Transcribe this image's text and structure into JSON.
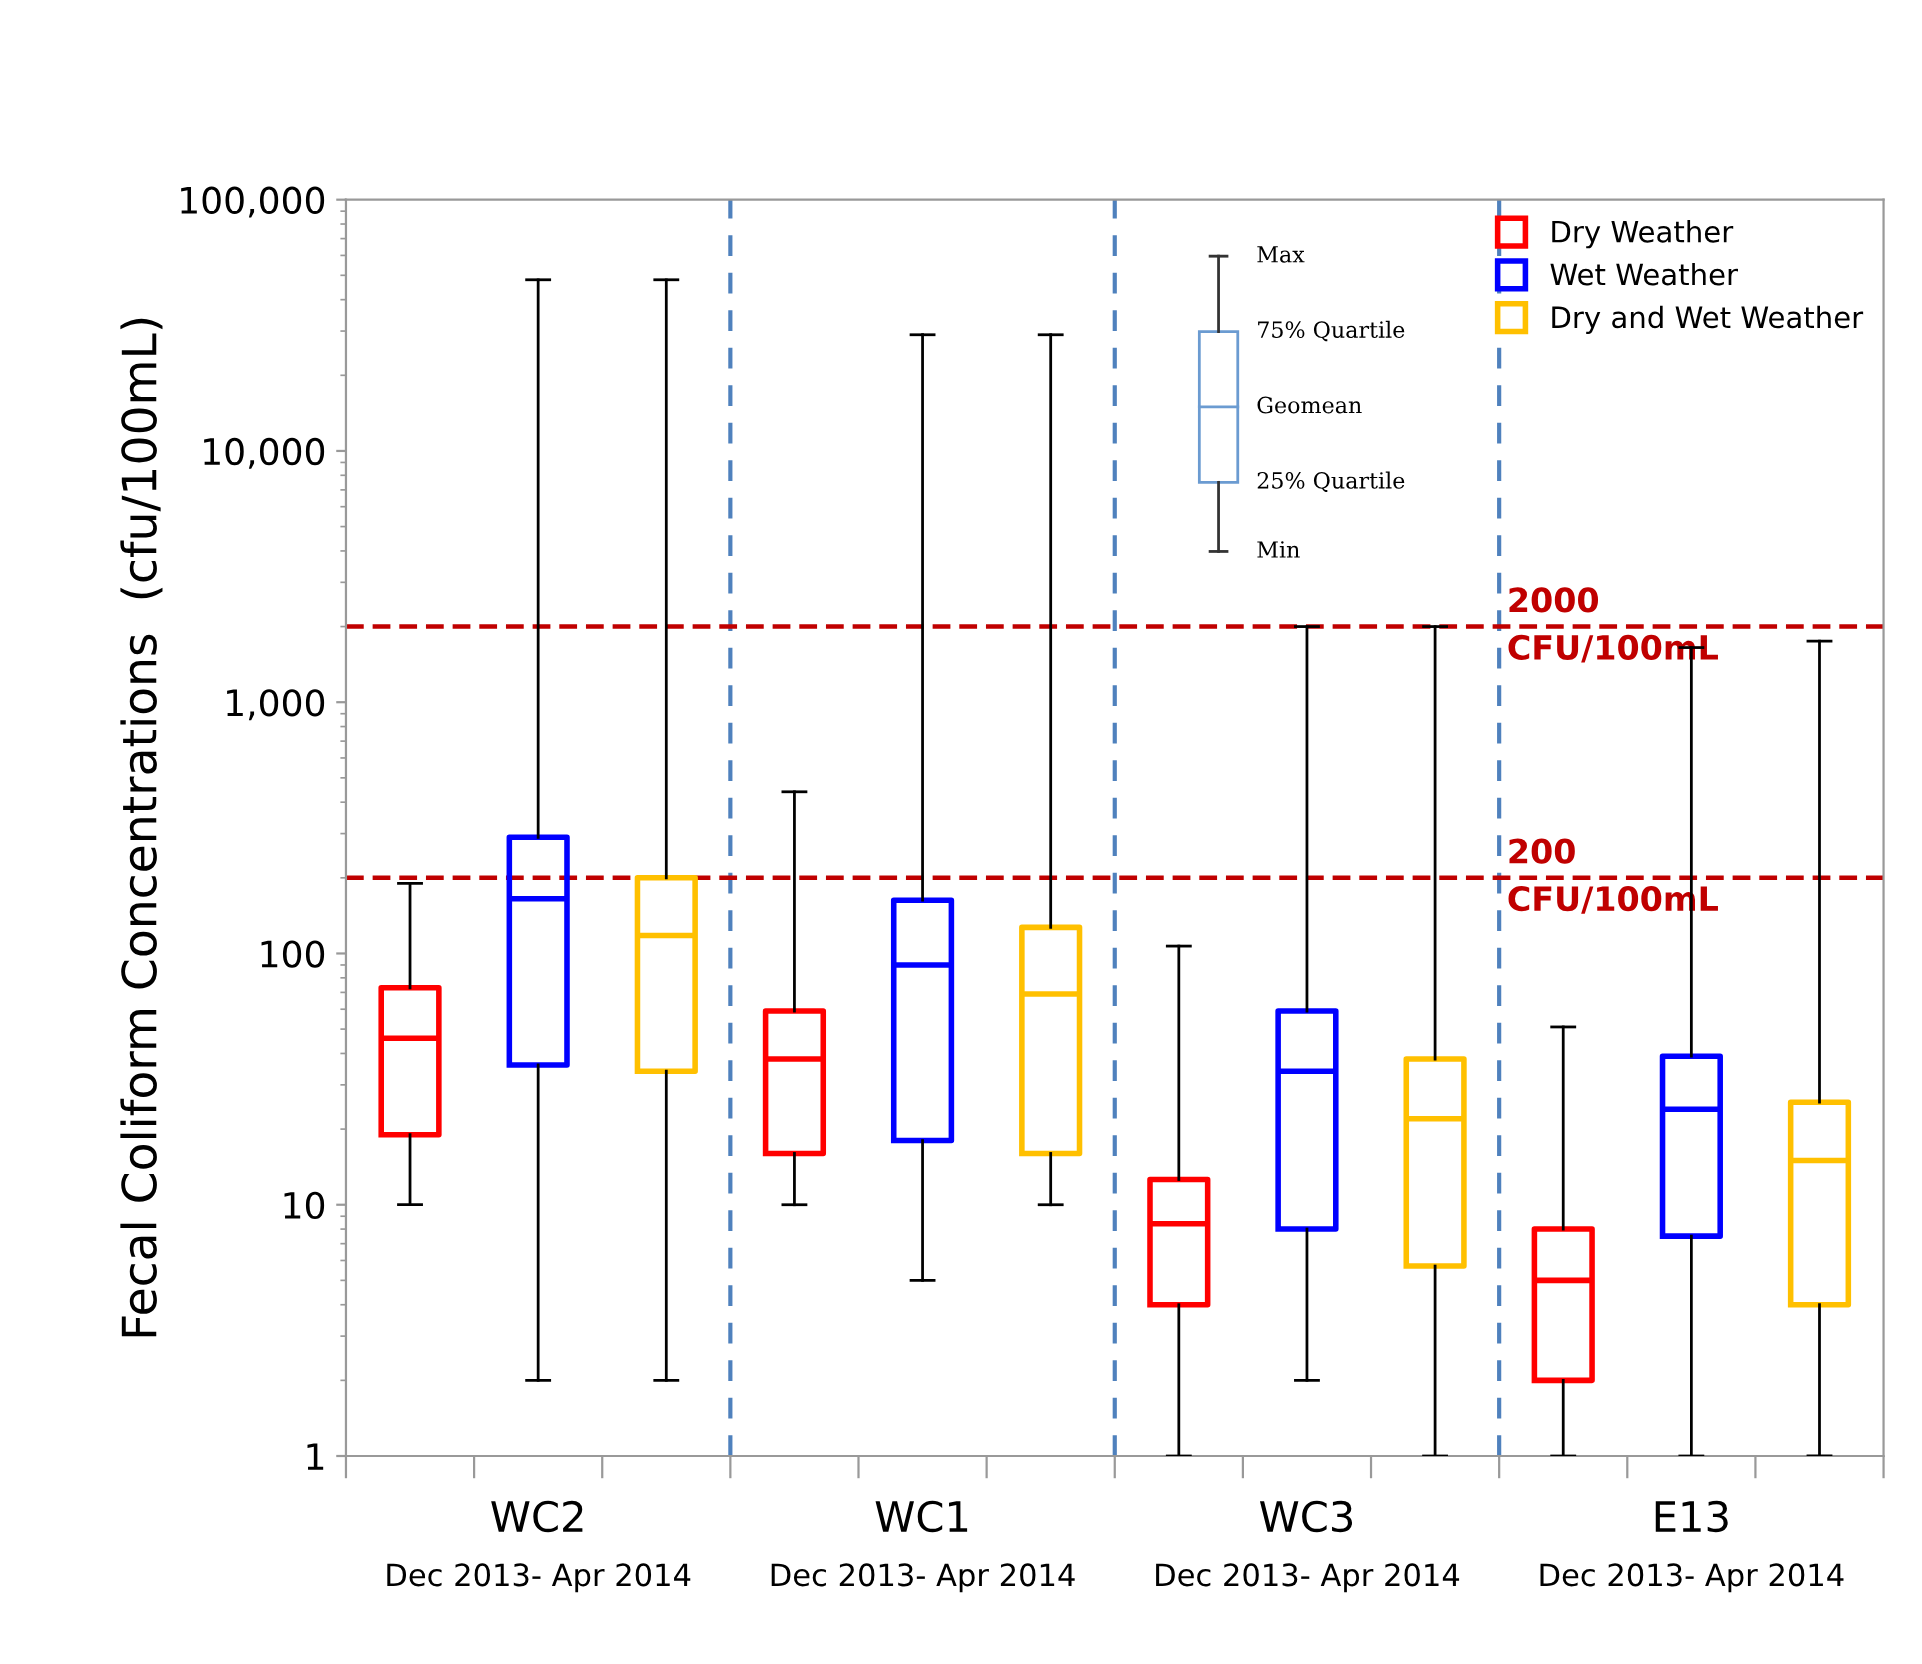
{
  "chart_data": {
    "type": "box",
    "ylabel": "Fecal Coliform Concentrations  (cfu/100mL)",
    "categories": [
      "WC2\nDec 2013- Apr 2014",
      "WC1\nDec 2013- Apr 2014",
      "WC3\nDec 2013- Apr 2014",
      "E13\nDec 2013- Apr 2014"
    ],
    "series": [
      {
        "name": "Dry Weather",
        "color": "#ff0000",
        "boxes": [
          {
            "low": 10,
            "q1": 19,
            "median": 46,
            "q3": 73,
            "high": 190
          },
          {
            "low": 10,
            "q1": 16,
            "median": 38,
            "q3": 59,
            "high": 440
          },
          {
            "low": 1,
            "q1": 4,
            "median": 8.4,
            "q3": 12.6,
            "high": 107
          },
          {
            "low": 1,
            "q1": 2,
            "median": 5,
            "q3": 8,
            "high": 51
          }
        ]
      },
      {
        "name": "Wet Weather",
        "color": "#0000ff",
        "boxes": [
          {
            "low": 2,
            "q1": 36,
            "median": 165,
            "q3": 290,
            "high": 48000
          },
          {
            "low": 5,
            "q1": 18,
            "median": 90,
            "q3": 163,
            "high": 29000
          },
          {
            "low": 2,
            "q1": 8,
            "median": 34,
            "q3": 59,
            "high": 2000
          },
          {
            "low": 1,
            "q1": 7.5,
            "median": 24,
            "q3": 39,
            "high": 1650
          }
        ]
      },
      {
        "name": "Dry and Wet Weather",
        "color": "#ffc000",
        "boxes": [
          {
            "low": 2,
            "q1": 34,
            "median": 118,
            "q3": 200,
            "high": 48000
          },
          {
            "low": 10,
            "q1": 16,
            "median": 69,
            "q3": 127,
            "high": 29000
          },
          {
            "low": 1,
            "q1": 5.7,
            "median": 22,
            "q3": 38,
            "high": 2000
          },
          {
            "low": 1,
            "q1": 4,
            "median": 15,
            "q3": 25.6,
            "high": 1750
          }
        ]
      }
    ],
    "log": "y",
    "ylim": [
      1,
      100000
    ],
    "yticks": [
      1,
      10,
      {
        "value": 100,
        "label": "100"
      },
      {
        "value": 1000,
        "label": "1,000"
      },
      {
        "value": 10000,
        "label": "10,000"
      },
      {
        "value": 100000,
        "label": "100,000"
      }
    ],
    "ref_lines": [
      {
        "axis": "y",
        "value": 2000,
        "label": "2000\nCFU/100mL",
        "color": "#c00000",
        "line_style": "dashed"
      },
      {
        "axis": "y",
        "value": 200,
        "label": "200\nCFU/100mL",
        "color": "#c00000",
        "line_style": "dashed"
      }
    ],
    "annotations": [
      "Max",
      "75% Quartile",
      "Geomean",
      "25% Quartile",
      "Min"
    ],
    "grid": "x",
    "legend": "top right"
  }
}
